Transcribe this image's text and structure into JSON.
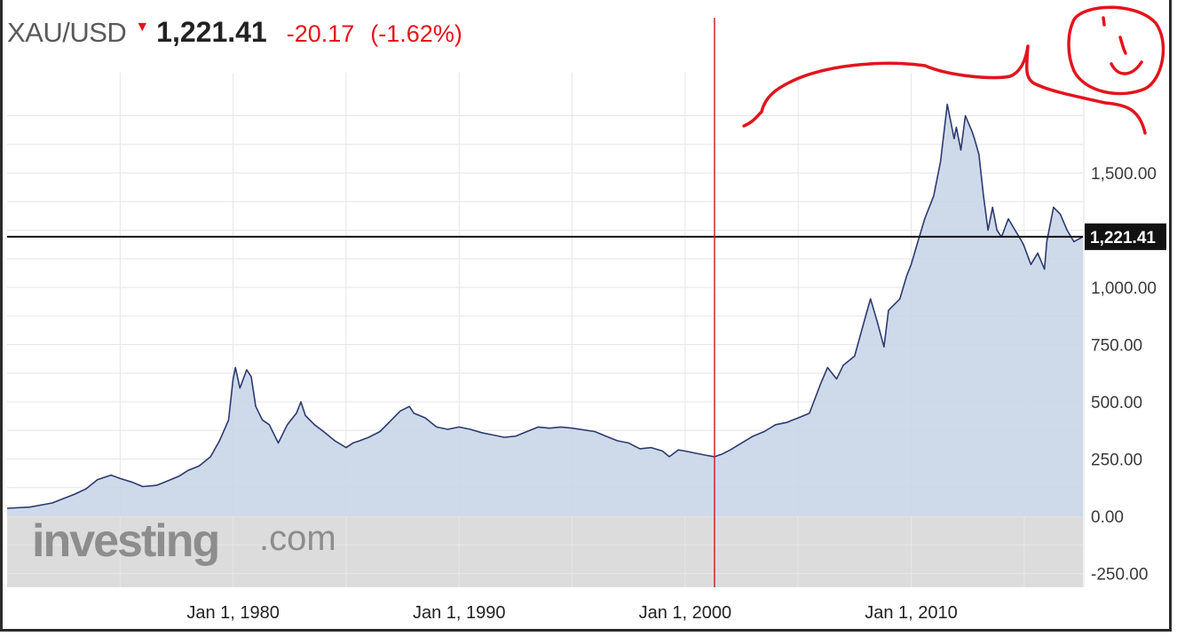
{
  "header": {
    "symbol": "XAU/USD",
    "direction": "down",
    "price": "1,221.41",
    "change": "-20.17",
    "change_pct": "(-1.62%)",
    "down_color": "#e3141c"
  },
  "watermark": {
    "brand": "investing",
    "suffix": ".com"
  },
  "annotations": {
    "smiley_face": true,
    "freehand_curve": true,
    "ink_color": "#e3141c"
  },
  "chart_data": {
    "type": "area",
    "title": "",
    "xlabel": "",
    "ylabel": "",
    "x_axis_labels": [
      "Jan 1, 1980",
      "Jan 1, 1990",
      "Jan 1, 2000",
      "Jan 1, 2010"
    ],
    "y_tick_labels": [
      "-250.00",
      "0.00",
      "250.00",
      "500.00",
      "750.00",
      "1,000.00",
      "1,500.00"
    ],
    "y_ticks": [
      -250,
      0,
      250,
      500,
      750,
      1000,
      1500
    ],
    "xlim": [
      1970.0,
      2017.6
    ],
    "ylim": [
      -250,
      1750
    ],
    "grid": true,
    "current_value": 1221.41,
    "current_value_label": "1,221.41",
    "vertical_marker_x": 2001.3,
    "line_color": "#2d3a6e",
    "fill_color": "#c9d6e8",
    "series": [
      {
        "x": [
          1970.0,
          1971.0,
          1972.0,
          1973.0,
          1973.5,
          1974.0,
          1974.6,
          1975.0,
          1975.5,
          1976.0,
          1976.6,
          1977.0,
          1977.6,
          1978.0,
          1978.5,
          1979.0,
          1979.4,
          1979.8,
          1980.0,
          1980.1,
          1980.3,
          1980.6,
          1980.8,
          1981.0,
          1981.3,
          1981.6,
          1982.0,
          1982.4,
          1982.8,
          1983.0,
          1983.2,
          1983.6,
          1984.0,
          1984.5,
          1985.0,
          1985.3,
          1985.6,
          1986.0,
          1986.5,
          1987.0,
          1987.4,
          1987.8,
          1988.0,
          1988.5,
          1989.0,
          1989.5,
          1990.0,
          1990.5,
          1991.0,
          1991.5,
          1992.0,
          1992.5,
          1993.0,
          1993.5,
          1994.0,
          1994.5,
          1995.0,
          1996.0,
          1996.5,
          1997.0,
          1997.5,
          1998.0,
          1998.5,
          1999.0,
          1999.3,
          1999.7,
          2000.0,
          2000.5,
          2001.0,
          2001.3,
          2001.6,
          2002.0,
          2002.5,
          2003.0,
          2003.5,
          2004.0,
          2004.5,
          2005.0,
          2005.5,
          2006.0,
          2006.3,
          2006.7,
          2007.0,
          2007.5,
          2008.0,
          2008.2,
          2008.5,
          2008.8,
          2009.0,
          2009.5,
          2009.8,
          2010.0,
          2010.3,
          2010.6,
          2011.0,
          2011.3,
          2011.6,
          2011.7,
          2011.9,
          2012.0,
          2012.2,
          2012.4,
          2012.7,
          2012.8,
          2013.0,
          2013.2,
          2013.4,
          2013.6,
          2013.8,
          2014.0,
          2014.3,
          2014.6,
          2014.9,
          2015.0,
          2015.3,
          2015.6,
          2015.9,
          2016.0,
          2016.3,
          2016.6,
          2016.9,
          2017.2,
          2017.6
        ],
        "values": [
          35,
          40,
          58,
          97,
          120,
          160,
          180,
          165,
          150,
          130,
          135,
          150,
          175,
          200,
          220,
          260,
          330,
          420,
          600,
          650,
          560,
          640,
          610,
          480,
          420,
          400,
          320,
          400,
          450,
          500,
          440,
          400,
          370,
          330,
          300,
          320,
          330,
          345,
          370,
          420,
          460,
          480,
          450,
          430,
          390,
          380,
          390,
          380,
          365,
          355,
          345,
          350,
          370,
          390,
          385,
          390,
          385,
          370,
          350,
          330,
          320,
          295,
          300,
          285,
          260,
          290,
          285,
          275,
          265,
          260,
          270,
          290,
          320,
          350,
          370,
          400,
          410,
          430,
          450,
          580,
          650,
          600,
          660,
          700,
          880,
          950,
          850,
          740,
          900,
          950,
          1050,
          1100,
          1200,
          1300,
          1400,
          1550,
          1800,
          1750,
          1650,
          1700,
          1600,
          1750,
          1680,
          1650,
          1580,
          1400,
          1250,
          1350,
          1250,
          1220,
          1300,
          1250,
          1200,
          1180,
          1100,
          1150,
          1080,
          1200,
          1350,
          1320,
          1250,
          1200,
          1221.41
        ]
      }
    ]
  }
}
